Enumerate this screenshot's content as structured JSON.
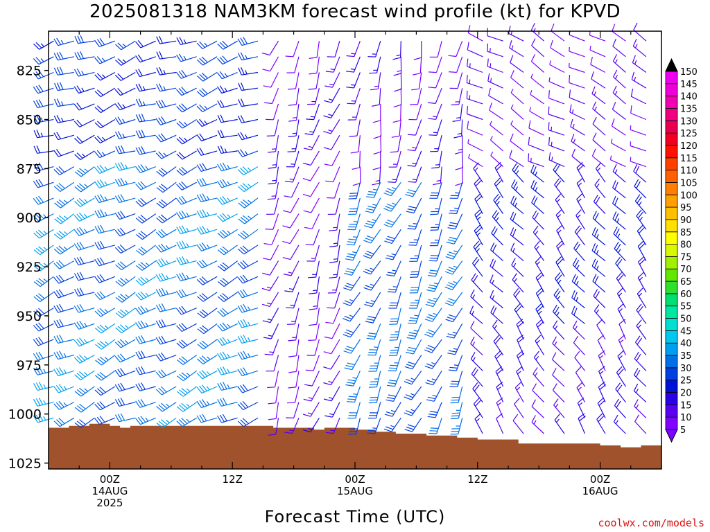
{
  "chart_data": {
    "type": "wind-profile",
    "title": "2025081318 NAM3KM forecast wind profile (kt) for KPVD",
    "xlabel": "Forecast Time (UTC)",
    "credit": "coolwx.com/models",
    "y_ticks": [
      "825",
      "850",
      "875",
      "900",
      "925",
      "950",
      "975",
      "1000",
      "1025"
    ],
    "y_tick_values": [
      825,
      850,
      875,
      900,
      925,
      950,
      975,
      1000,
      1025
    ],
    "ylim": [
      805,
      1028
    ],
    "y_axis_inverted": true,
    "x_range_hours": [
      -6,
      54
    ],
    "x_ticks": [
      {
        "hour": 0,
        "lines": [
          "00Z",
          "14AUG",
          "2025"
        ]
      },
      {
        "hour": 12,
        "lines": [
          "12Z"
        ]
      },
      {
        "hour": 24,
        "lines": [
          "00Z",
          "15AUG"
        ]
      },
      {
        "hour": 36,
        "lines": [
          "12Z"
        ]
      },
      {
        "hour": 48,
        "lines": [
          "00Z",
          "16AUG"
        ]
      }
    ],
    "colorbar": {
      "levels": [
        5,
        10,
        15,
        20,
        25,
        30,
        35,
        40,
        45,
        50,
        55,
        60,
        65,
        70,
        75,
        80,
        85,
        90,
        95,
        100,
        105,
        110,
        115,
        120,
        125,
        130,
        135,
        140,
        145,
        150
      ],
      "colors": [
        "#7f00ff",
        "#5a00f0",
        "#2a00e8",
        "#0010d8",
        "#0040e0",
        "#0070e8",
        "#00a0f0",
        "#00c8f0",
        "#00e0d0",
        "#00e8a0",
        "#00e070",
        "#30e030",
        "#60e800",
        "#a0f000",
        "#d8f800",
        "#ffff00",
        "#ffe000",
        "#ffc000",
        "#ffa000",
        "#ff8000",
        "#ff6000",
        "#ff4000",
        "#ff1000",
        "#f00020",
        "#e80050",
        "#f00080",
        "#f000b0",
        "#f000d8",
        "#f000f0",
        "#000000"
      ],
      "top_arrow_color": "#000000",
      "bottom_arrow_color": "#8000ff"
    },
    "surface_color": "#a0522d",
    "surface_pressure": [
      {
        "hour": -6,
        "hpa": 1007
      },
      {
        "hour": -4,
        "hpa": 1006
      },
      {
        "hour": -2,
        "hpa": 1005
      },
      {
        "hour": 0,
        "hpa": 1006
      },
      {
        "hour": 1,
        "hpa": 1007
      },
      {
        "hour": 2,
        "hpa": 1006
      },
      {
        "hour": 5,
        "hpa": 1006
      },
      {
        "hour": 8,
        "hpa": 1006
      },
      {
        "hour": 12,
        "hpa": 1006
      },
      {
        "hour": 16,
        "hpa": 1007
      },
      {
        "hour": 20,
        "hpa": 1008
      },
      {
        "hour": 21,
        "hpa": 1007
      },
      {
        "hour": 24,
        "hpa": 1008
      },
      {
        "hour": 26,
        "hpa": 1009
      },
      {
        "hour": 28,
        "hpa": 1010
      },
      {
        "hour": 31,
        "hpa": 1011
      },
      {
        "hour": 34,
        "hpa": 1012
      },
      {
        "hour": 36,
        "hpa": 1013
      },
      {
        "hour": 40,
        "hpa": 1015
      },
      {
        "hour": 44,
        "hpa": 1015
      },
      {
        "hour": 48,
        "hpa": 1016
      },
      {
        "hour": 50,
        "hpa": 1017
      },
      {
        "hour": 52,
        "hpa": 1016
      },
      {
        "hour": 54,
        "hpa": 1016
      }
    ],
    "barb_levels_hpa": [
      810,
      818,
      826,
      834,
      842,
      850,
      858,
      866,
      874,
      882,
      890,
      898,
      906,
      914,
      922,
      930,
      938,
      946,
      954,
      962,
      970,
      978,
      986,
      994,
      1002,
      1010,
      1018
    ],
    "wind_regimes": [
      {
        "hours": [
          -6,
          15
        ],
        "levels": [
          805,
          870
        ],
        "dir": 250,
        "speed": 25
      },
      {
        "hours": [
          -6,
          15
        ],
        "levels": [
          870,
          1005
        ],
        "dir": 245,
        "speed": 32
      },
      {
        "hours": [
          15,
          24
        ],
        "levels": [
          805,
          1010
        ],
        "dir": 200,
        "speed": 12
      },
      {
        "hours": [
          24,
          35
        ],
        "levels": [
          805,
          880
        ],
        "dir": 190,
        "speed": 12
      },
      {
        "hours": [
          24,
          35
        ],
        "levels": [
          880,
          1012
        ],
        "dir": 205,
        "speed": 30
      },
      {
        "hours": [
          35,
          54
        ],
        "levels": [
          805,
          880
        ],
        "dir": 300,
        "speed": 10
      },
      {
        "hours": [
          35,
          54
        ],
        "levels": [
          880,
          960
        ],
        "dir": 320,
        "speed": 20
      },
      {
        "hours": [
          35,
          54
        ],
        "levels": [
          960,
          1020
        ],
        "dir": 325,
        "speed": 15
      }
    ]
  }
}
